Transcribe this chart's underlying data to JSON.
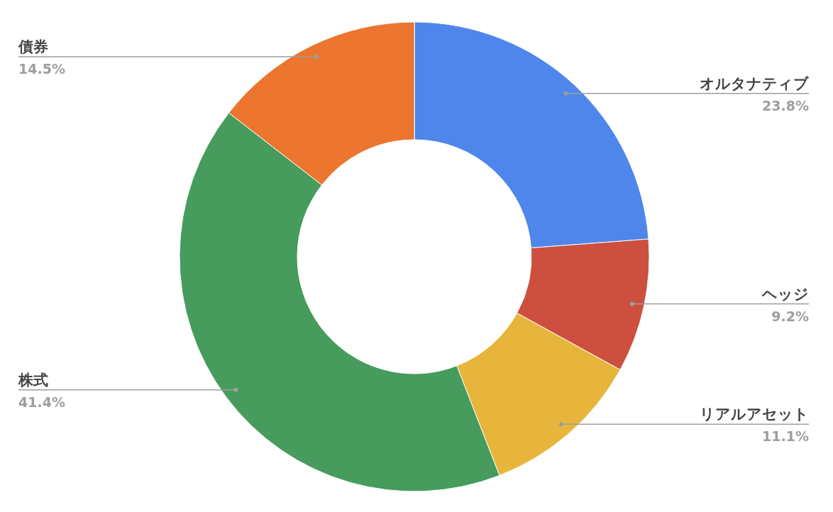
{
  "chart_data": {
    "type": "donut",
    "categories": [
      "オルタナティブ",
      "ヘッジ",
      "リアルアセット",
      "株式",
      "債券"
    ],
    "values": [
      23.8,
      9.2,
      11.1,
      41.4,
      14.5
    ],
    "colors": [
      "#4f86ec",
      "#cc4f3f",
      "#e8b53c",
      "#469b5d",
      "#ec752f"
    ],
    "value_labels": [
      "23.8%",
      "9.2%",
      "11.1%",
      "41.4%",
      "14.5%"
    ],
    "legend": false
  }
}
